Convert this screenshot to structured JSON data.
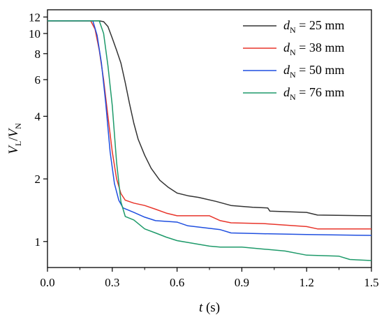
{
  "chart_data": {
    "type": "line",
    "x_scale": "linear",
    "y_scale": "log",
    "xlim": [
      0,
      1.5
    ],
    "ylim": [
      0.75,
      13
    ],
    "x_ticks": [
      0.0,
      0.3,
      0.6,
      0.9,
      1.2,
      1.5
    ],
    "x_tick_labels": [
      "0.0",
      "0.3",
      "0.6",
      "0.9",
      "1.2",
      "1.5"
    ],
    "y_ticks": [
      1,
      2,
      4,
      6,
      8,
      10,
      12
    ],
    "y_tick_labels": [
      "1",
      "2",
      "4",
      "6",
      "8",
      "10",
      "12"
    ],
    "xlabel": {
      "main": "t",
      "rest": " (s)"
    },
    "ylabel": {
      "v1": "V",
      "s1": "L",
      "sep": "/",
      "v2": "V",
      "s2": "N"
    },
    "grid": false,
    "legend_position": "top-right",
    "series": [
      {
        "legend": {
          "var": "d",
          "sub": "N",
          "rest": " = 25 mm"
        },
        "color": "#333333",
        "points": [
          [
            0,
            11.5
          ],
          [
            0.24,
            11.5
          ],
          [
            0.26,
            11.4
          ],
          [
            0.28,
            10.8
          ],
          [
            0.3,
            9.5
          ],
          [
            0.32,
            8.3
          ],
          [
            0.34,
            7.2
          ],
          [
            0.36,
            5.8
          ],
          [
            0.38,
            4.6
          ],
          [
            0.4,
            3.7
          ],
          [
            0.42,
            3.1
          ],
          [
            0.45,
            2.6
          ],
          [
            0.48,
            2.25
          ],
          [
            0.52,
            1.97
          ],
          [
            0.56,
            1.82
          ],
          [
            0.6,
            1.71
          ],
          [
            0.65,
            1.66
          ],
          [
            0.7,
            1.63
          ],
          [
            0.78,
            1.56
          ],
          [
            0.85,
            1.49
          ],
          [
            0.95,
            1.46
          ],
          [
            1.02,
            1.45
          ],
          [
            1.03,
            1.4
          ],
          [
            1.2,
            1.38
          ],
          [
            1.25,
            1.34
          ],
          [
            1.5,
            1.33
          ]
        ]
      },
      {
        "legend": {
          "var": "d",
          "sub": "N",
          "rest": " = 38 mm"
        },
        "color": "#e8352b",
        "points": [
          [
            0,
            11.5
          ],
          [
            0.2,
            11.5
          ],
          [
            0.22,
            10.5
          ],
          [
            0.24,
            8.3
          ],
          [
            0.26,
            6.0
          ],
          [
            0.28,
            4.0
          ],
          [
            0.3,
            2.7
          ],
          [
            0.32,
            2.0
          ],
          [
            0.34,
            1.7
          ],
          [
            0.36,
            1.58
          ],
          [
            0.4,
            1.53
          ],
          [
            0.45,
            1.49
          ],
          [
            0.5,
            1.43
          ],
          [
            0.55,
            1.37
          ],
          [
            0.6,
            1.33
          ],
          [
            0.65,
            1.33
          ],
          [
            0.75,
            1.33
          ],
          [
            0.8,
            1.26
          ],
          [
            0.85,
            1.23
          ],
          [
            1.0,
            1.22
          ],
          [
            1.1,
            1.2
          ],
          [
            1.2,
            1.18
          ],
          [
            1.25,
            1.15
          ],
          [
            1.5,
            1.15
          ]
        ]
      },
      {
        "legend": {
          "var": "d",
          "sub": "N",
          "rest": " = 50 mm"
        },
        "color": "#1f4fe0",
        "points": [
          [
            0,
            11.5
          ],
          [
            0.21,
            11.5
          ],
          [
            0.23,
            9.8
          ],
          [
            0.25,
            7.2
          ],
          [
            0.27,
            4.6
          ],
          [
            0.29,
            2.7
          ],
          [
            0.31,
            1.9
          ],
          [
            0.33,
            1.58
          ],
          [
            0.35,
            1.45
          ],
          [
            0.4,
            1.38
          ],
          [
            0.45,
            1.31
          ],
          [
            0.5,
            1.26
          ],
          [
            0.6,
            1.24
          ],
          [
            0.65,
            1.19
          ],
          [
            0.8,
            1.14
          ],
          [
            0.85,
            1.1
          ],
          [
            1.0,
            1.09
          ],
          [
            1.2,
            1.08
          ],
          [
            1.5,
            1.07
          ]
        ]
      },
      {
        "legend": {
          "var": "d",
          "sub": "N",
          "rest": " = 76 mm"
        },
        "color": "#1e9a6a",
        "points": [
          [
            0,
            11.5
          ],
          [
            0.24,
            11.5
          ],
          [
            0.26,
            10.0
          ],
          [
            0.28,
            7.0
          ],
          [
            0.3,
            4.5
          ],
          [
            0.32,
            2.4
          ],
          [
            0.34,
            1.55
          ],
          [
            0.36,
            1.32
          ],
          [
            0.4,
            1.27
          ],
          [
            0.45,
            1.15
          ],
          [
            0.5,
            1.1
          ],
          [
            0.55,
            1.05
          ],
          [
            0.6,
            1.01
          ],
          [
            0.65,
            0.99
          ],
          [
            0.7,
            0.97
          ],
          [
            0.75,
            0.95
          ],
          [
            0.8,
            0.94
          ],
          [
            0.9,
            0.94
          ],
          [
            1.0,
            0.92
          ],
          [
            1.1,
            0.9
          ],
          [
            1.2,
            0.86
          ],
          [
            1.35,
            0.85
          ],
          [
            1.4,
            0.82
          ],
          [
            1.5,
            0.81
          ]
        ]
      }
    ]
  }
}
